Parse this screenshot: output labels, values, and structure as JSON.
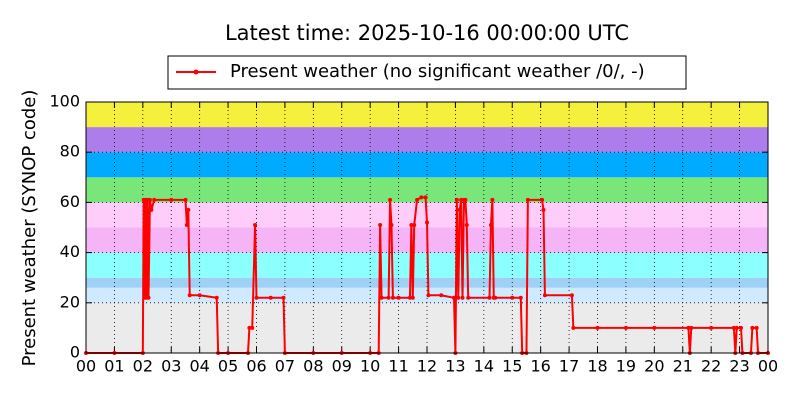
{
  "chart_data": {
    "type": "line",
    "title": "Latest time: 2025-10-16 00:00:00 UTC",
    "y_label": "Present weather (SYNOP code)",
    "legend": "top",
    "grid": true,
    "xlim": [
      0,
      24
    ],
    "xticks": [
      {
        "value": 0,
        "label": "00"
      },
      {
        "value": 1,
        "label": "01"
      },
      {
        "value": 2,
        "label": "02"
      },
      {
        "value": 3,
        "label": "03"
      },
      {
        "value": 4,
        "label": "04"
      },
      {
        "value": 5,
        "label": "05"
      },
      {
        "value": 6,
        "label": "06"
      },
      {
        "value": 7,
        "label": "07"
      },
      {
        "value": 8,
        "label": "08"
      },
      {
        "value": 9,
        "label": "09"
      },
      {
        "value": 10,
        "label": "10"
      },
      {
        "value": 11,
        "label": "11"
      },
      {
        "value": 12,
        "label": "12"
      },
      {
        "value": 13,
        "label": "13"
      },
      {
        "value": 14,
        "label": "14"
      },
      {
        "value": 15,
        "label": "15"
      },
      {
        "value": 16,
        "label": "16"
      },
      {
        "value": 17,
        "label": "17"
      },
      {
        "value": 18,
        "label": "18"
      },
      {
        "value": 19,
        "label": "19"
      },
      {
        "value": 20,
        "label": "20"
      },
      {
        "value": 21,
        "label": "21"
      },
      {
        "value": 22,
        "label": "22"
      },
      {
        "value": 23,
        "label": "23"
      },
      {
        "value": 24,
        "label": "00"
      }
    ],
    "ylim": [
      0,
      100
    ],
    "yticks": [
      0,
      20,
      40,
      60,
      80,
      100
    ],
    "bands": [
      {
        "from": 0,
        "to": 20,
        "color": "#ebebeb"
      },
      {
        "from": 20,
        "to": 26,
        "color": "#cfeaff"
      },
      {
        "from": 26,
        "to": 30,
        "color": "#9fd0f5"
      },
      {
        "from": 30,
        "to": 40,
        "color": "#8cffff"
      },
      {
        "from": 40,
        "to": 50,
        "color": "#f5b4f5"
      },
      {
        "from": 50,
        "to": 60,
        "color": "#ffcdfa"
      },
      {
        "from": 60,
        "to": 70,
        "color": "#78e678"
      },
      {
        "from": 70,
        "to": 80,
        "color": "#00aaff"
      },
      {
        "from": 80,
        "to": 90,
        "color": "#ad7deb"
      },
      {
        "from": 90,
        "to": 100,
        "color": "#f5f03c"
      }
    ],
    "x": [
      0,
      1,
      2,
      2.03,
      2.07,
      2.1,
      2.13,
      2.17,
      2.2,
      2.25,
      2.3,
      2.4,
      3,
      3.5,
      3.55,
      3.6,
      3.65,
      4,
      4.6,
      4.65,
      5,
      5.7,
      5.75,
      5.85,
      5.95,
      6.0,
      6.5,
      6.95,
      7.0,
      8,
      9,
      10,
      10.3,
      10.35,
      10.4,
      10.65,
      10.7,
      10.75,
      10.8,
      11,
      11.4,
      11.45,
      11.5,
      11.55,
      11.65,
      11.8,
      11.95,
      12.0,
      12.05,
      12.5,
      12.95,
      13.0,
      13.05,
      13.1,
      13.15,
      13.2,
      13.25,
      13.3,
      13.35,
      13.4,
      13.45,
      14.2,
      14.25,
      14.3,
      14.35,
      14.4,
      15.0,
      15.3,
      15.35,
      15.5,
      15.55,
      16.05,
      16.1,
      16.15,
      17.1,
      17.15,
      18,
      19,
      20,
      21.2,
      21.25,
      21.3,
      22,
      22.8,
      22.85,
      22.9,
      23.05,
      23.1,
      23.4,
      23.45,
      23.6,
      23.65,
      24
    ],
    "series": [
      {
        "name": "Present weather (no significant weather /0/, -)",
        "color": "#ff0000",
        "values": [
          0,
          0,
          0,
          61,
          22,
          61,
          22,
          61,
          22,
          61,
          57,
          61,
          61,
          61,
          51,
          57,
          23,
          23,
          22,
          0,
          0,
          0,
          10,
          10,
          51,
          22,
          22,
          22,
          0,
          0,
          0,
          0,
          0,
          51,
          22,
          22,
          61,
          51,
          22,
          22,
          22,
          51,
          22,
          51,
          61,
          62,
          62,
          52,
          23,
          23,
          22,
          0,
          61,
          22,
          57,
          61,
          22,
          61,
          61,
          51,
          22,
          22,
          51,
          61,
          22,
          22,
          22,
          22,
          0,
          0,
          61,
          61,
          57,
          23,
          23,
          10,
          10,
          10,
          10,
          10,
          0,
          10,
          10,
          10,
          0,
          10,
          10,
          0,
          0,
          10,
          10,
          0,
          0
        ]
      }
    ]
  }
}
